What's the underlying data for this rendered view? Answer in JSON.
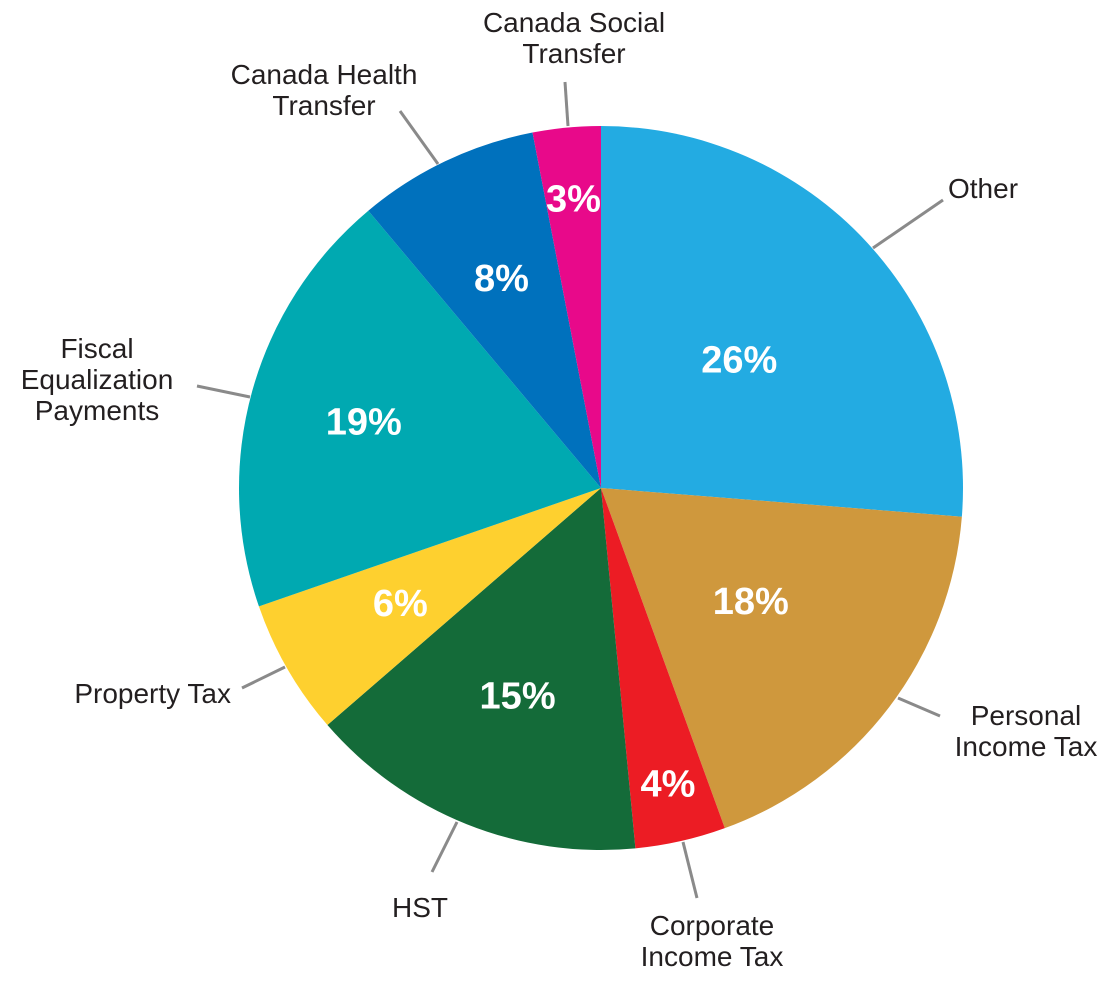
{
  "chart_data": {
    "type": "pie",
    "title": "",
    "start": "top",
    "direction": "clockwise",
    "slices": [
      {
        "name": "Other",
        "label_lines": [
          "Other"
        ],
        "value": 26,
        "label": "26%",
        "color": "#23abe2"
      },
      {
        "name": "Personal Income Tax",
        "label_lines": [
          "Personal",
          "Income Tax"
        ],
        "value": 18,
        "label": "18%",
        "color": "#cf983d"
      },
      {
        "name": "Corporate Income Tax",
        "label_lines": [
          "Corporate",
          "Income Tax"
        ],
        "value": 4,
        "label": "4%",
        "color": "#ec1c24"
      },
      {
        "name": "HST",
        "label_lines": [
          "HST"
        ],
        "value": 15,
        "label": "15%",
        "color": "#146b39"
      },
      {
        "name": "Property Tax",
        "label_lines": [
          "Property Tax"
        ],
        "value": 6,
        "label": "6%",
        "color": "#fed02f"
      },
      {
        "name": "Fiscal Equalization Payments",
        "label_lines": [
          "Fiscal",
          "Equalization",
          "Payments"
        ],
        "value": 19,
        "label": "19%",
        "color": "#00a9b1"
      },
      {
        "name": "Canada Health Transfer",
        "label_lines": [
          "Canada Health",
          "Transfer"
        ],
        "value": 8,
        "label": "8%",
        "color": "#0071bd"
      },
      {
        "name": "Canada Social Transfer",
        "label_lines": [
          "Canada Social",
          "Transfer"
        ],
        "value": 3,
        "label": "3%",
        "color": "#e8098a"
      }
    ]
  }
}
